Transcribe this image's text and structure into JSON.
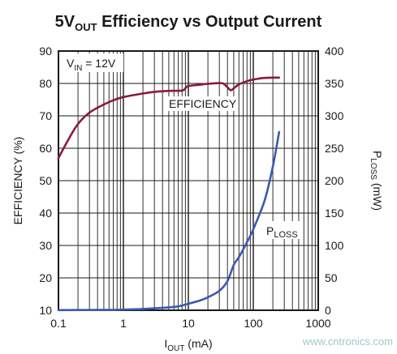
{
  "chart_data": {
    "type": "line",
    "title": {
      "main": "5V",
      "sub": "OUT",
      "rest": " Efficiency vs Output Current"
    },
    "xlabel": {
      "main": "I",
      "sub": "OUT",
      "rest": " (mA)"
    },
    "ylabel_left": "EFFICIENCY (%)",
    "ylabel_right": {
      "main": "P",
      "sub": "LOSS",
      "rest": " (mW)"
    },
    "x_scale": "log",
    "xlim": [
      0.1,
      1000
    ],
    "ylim_left": [
      10,
      90
    ],
    "ylim_right": [
      0,
      400
    ],
    "x_ticks": [
      0.1,
      1,
      10,
      100,
      1000
    ],
    "x_tick_labels": [
      "0.1",
      "1",
      "10",
      "100",
      "1000"
    ],
    "y_left_ticks": [
      10,
      20,
      30,
      40,
      50,
      60,
      70,
      80,
      90
    ],
    "y_left_tick_labels": [
      "10",
      "20",
      "30",
      "40",
      "50",
      "60",
      "70",
      "80",
      "90"
    ],
    "y_right_ticks": [
      0,
      50,
      100,
      150,
      200,
      250,
      300,
      350,
      400
    ],
    "y_right_tick_labels": [
      "0",
      "50",
      "100",
      "150",
      "200",
      "250",
      "300",
      "350",
      "400"
    ],
    "grid": true,
    "condition": {
      "main": "V",
      "sub": "IN",
      "rest": " = 12V"
    },
    "series": [
      {
        "label": "EFFICIENCY",
        "axis": "left",
        "color": "#8b1a3a",
        "x": [
          0.1,
          0.15,
          0.2,
          0.3,
          0.5,
          0.7,
          1,
          2,
          3,
          5,
          8,
          9,
          10,
          15,
          20,
          30,
          35,
          40,
          45,
          50,
          60,
          80,
          100,
          150,
          250
        ],
        "y": [
          57,
          63.5,
          67.5,
          71,
          73.5,
          74.8,
          75.8,
          76.9,
          77.4,
          77.7,
          77.8,
          78.5,
          79.2,
          79.6,
          79.9,
          80.1,
          79.9,
          78.8,
          77.9,
          78.5,
          79.7,
          80.7,
          81.2,
          81.7,
          81.8
        ]
      },
      {
        "label": {
          "main": "P",
          "sub": "LOSS"
        },
        "axis": "right",
        "color": "#3a5ab0",
        "x": [
          0.1,
          0.5,
          1,
          2,
          3,
          5,
          7,
          10,
          15,
          20,
          30,
          40,
          50,
          60,
          80,
          100,
          150,
          200,
          250
        ],
        "y": [
          0.3,
          0.5,
          1,
          2,
          3,
          4.5,
          6,
          10,
          15,
          20,
          30,
          45,
          70,
          82,
          105,
          125,
          170,
          222,
          275
        ]
      }
    ],
    "watermark": "www.cntronics.com"
  }
}
